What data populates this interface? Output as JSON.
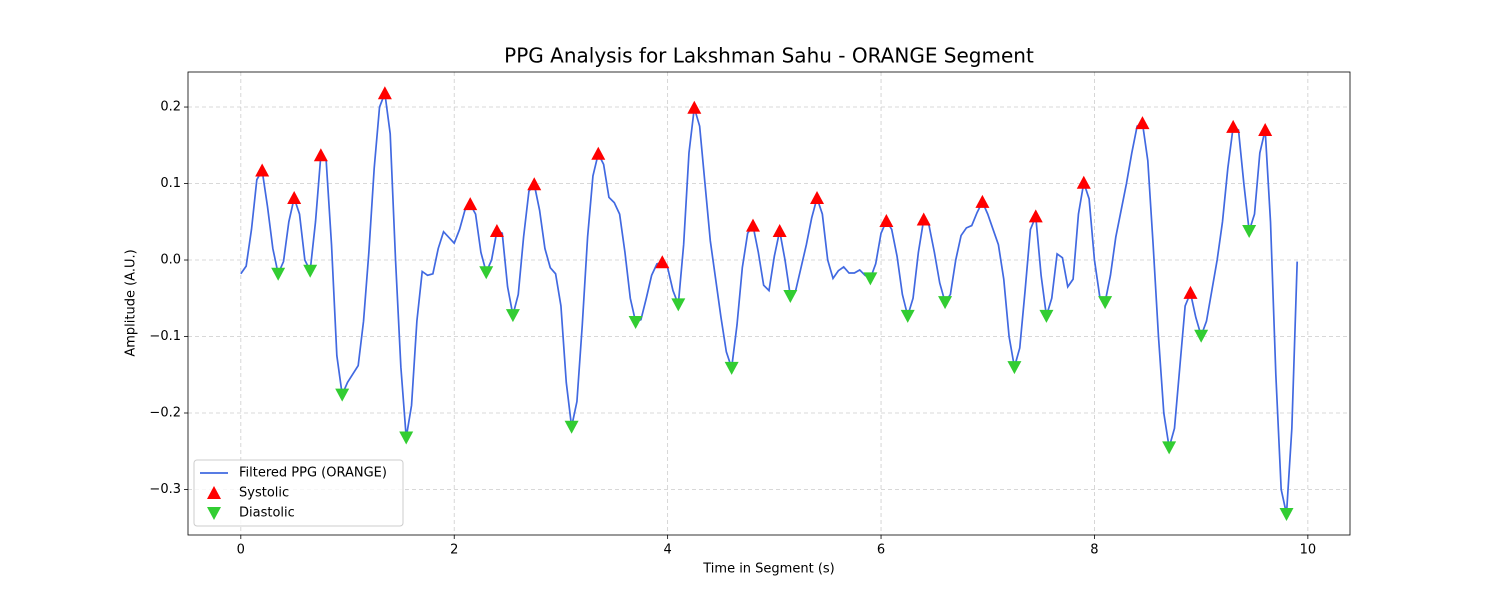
{
  "chart_data": {
    "type": "line",
    "title": "PPG Analysis for Lakshman Sahu - ORANGE Segment",
    "xlabel": "Time in Segment (s)",
    "ylabel": "Amplitude (A.U.)",
    "xlim": [
      -0.495,
      10.395
    ],
    "ylim": [
      -0.3595,
      0.2458
    ],
    "xticks": [
      0,
      2,
      4,
      6,
      8,
      10
    ],
    "yticks": [
      {
        "value": -0.3,
        "label": "−0.3"
      },
      {
        "value": -0.2,
        "label": "−0.2"
      },
      {
        "value": -0.1,
        "label": "−0.1"
      },
      {
        "value": 0,
        "label": "0.0"
      },
      0.1,
      0.2
    ],
    "grid": true,
    "legend": "lower left",
    "series": [
      {
        "name": "Filtered PPG (ORANGE)",
        "color": "#4169e1",
        "marker": "none",
        "x": [
          0,
          0.05,
          0.1,
          0.15,
          0.2,
          0.25,
          0.3,
          0.35,
          0.4,
          0.45,
          0.5,
          0.55,
          0.6,
          0.65,
          0.7,
          0.75,
          0.8,
          0.85,
          0.9,
          0.95,
          1.0,
          1.1,
          1.15,
          1.2,
          1.25,
          1.3,
          1.35,
          1.4,
          1.45,
          1.5,
          1.55,
          1.6,
          1.65,
          1.7,
          1.75,
          1.8,
          1.85,
          1.9,
          2.0,
          2.05,
          2.1,
          2.15,
          2.2,
          2.25,
          2.3,
          2.35,
          2.4,
          2.45,
          2.5,
          2.55,
          2.6,
          2.65,
          2.7,
          2.75,
          2.8,
          2.85,
          2.9,
          2.95,
          3.0,
          3.05,
          3.1,
          3.15,
          3.2,
          3.25,
          3.3,
          3.35,
          3.4,
          3.45,
          3.5,
          3.55,
          3.6,
          3.65,
          3.7,
          3.75,
          3.8,
          3.85,
          3.9,
          3.95,
          4.0,
          4.05,
          4.1,
          4.15,
          4.2,
          4.25,
          4.3,
          4.35,
          4.4,
          4.45,
          4.5,
          4.55,
          4.6,
          4.65,
          4.7,
          4.75,
          4.8,
          4.85,
          4.9,
          4.95,
          5.0,
          5.05,
          5.1,
          5.15,
          5.2,
          5.25,
          5.3,
          5.35,
          5.4,
          5.45,
          5.5,
          5.55,
          5.6,
          5.65,
          5.7,
          5.75,
          5.8,
          5.85,
          5.9,
          5.95,
          6.0,
          6.05,
          6.1,
          6.15,
          6.2,
          6.25,
          6.3,
          6.35,
          6.4,
          6.45,
          6.5,
          6.55,
          6.6,
          6.65,
          6.7,
          6.75,
          6.8,
          6.85,
          6.9,
          6.95,
          7.0,
          7.05,
          7.1,
          7.15,
          7.2,
          7.25,
          7.3,
          7.35,
          7.4,
          7.45,
          7.5,
          7.55,
          7.6,
          7.65,
          7.7,
          7.75,
          7.8,
          7.85,
          7.9,
          7.95,
          8.0,
          8.05,
          8.1,
          8.15,
          8.2,
          8.25,
          8.3,
          8.35,
          8.4,
          8.45,
          8.5,
          8.55,
          8.6,
          8.65,
          8.7,
          8.75,
          8.8,
          8.85,
          8.9,
          8.95,
          9.0,
          9.05,
          9.1,
          9.15,
          9.2,
          9.25,
          9.3,
          9.35,
          9.4,
          9.45,
          9.5,
          9.55,
          9.6,
          9.65,
          9.7,
          9.75,
          9.8,
          9.85,
          9.9
        ],
        "values": [
          -0.018,
          -0.008,
          0.04,
          0.105,
          0.117,
          0.07,
          0.015,
          -0.018,
          -0.002,
          0.05,
          0.081,
          0.06,
          0.0,
          -0.014,
          0.05,
          0.137,
          0.13,
          0.02,
          -0.125,
          -0.176,
          -0.16,
          -0.138,
          -0.08,
          0.01,
          0.12,
          0.2,
          0.218,
          0.165,
          0.0,
          -0.14,
          -0.232,
          -0.19,
          -0.08,
          -0.015,
          -0.02,
          -0.018,
          0.015,
          0.037,
          0.022,
          0.04,
          0.065,
          0.073,
          0.06,
          0.01,
          -0.016,
          0.0,
          0.038,
          0.035,
          -0.035,
          -0.072,
          -0.045,
          0.03,
          0.09,
          0.099,
          0.065,
          0.015,
          -0.01,
          -0.018,
          -0.06,
          -0.16,
          -0.218,
          -0.185,
          -0.085,
          0.03,
          0.11,
          0.139,
          0.125,
          0.082,
          0.075,
          0.06,
          0.01,
          -0.05,
          -0.081,
          -0.078,
          -0.05,
          -0.02,
          -0.005,
          -0.003,
          -0.01,
          -0.04,
          -0.058,
          0.02,
          0.14,
          0.199,
          0.175,
          0.1,
          0.025,
          -0.025,
          -0.075,
          -0.12,
          -0.141,
          -0.085,
          -0.01,
          0.035,
          0.045,
          0.01,
          -0.033,
          -0.04,
          0.005,
          0.038,
          0.0,
          -0.047,
          -0.04,
          -0.01,
          0.02,
          0.055,
          0.081,
          0.06,
          0.0,
          -0.024,
          -0.014,
          -0.009,
          -0.017,
          -0.017,
          -0.013,
          -0.02,
          -0.024,
          -0.005,
          0.035,
          0.051,
          0.04,
          0.005,
          -0.045,
          -0.073,
          -0.05,
          0.01,
          0.053,
          0.045,
          0.01,
          -0.03,
          -0.055,
          -0.045,
          0.0,
          0.032,
          0.042,
          0.045,
          0.062,
          0.076,
          0.06,
          0.04,
          0.02,
          -0.025,
          -0.1,
          -0.14,
          -0.115,
          -0.04,
          0.04,
          0.057,
          -0.02,
          -0.073,
          -0.05,
          0.008,
          0.003,
          -0.035,
          -0.025,
          0.06,
          0.101,
          0.08,
          0.0,
          -0.048,
          -0.055,
          -0.02,
          0.03,
          0.065,
          0.1,
          0.14,
          0.175,
          0.179,
          0.13,
          0.02,
          -0.1,
          -0.2,
          -0.245,
          -0.22,
          -0.14,
          -0.06,
          -0.043,
          -0.075,
          -0.099,
          -0.08,
          -0.04,
          0.0,
          0.05,
          0.12,
          0.174,
          0.17,
          0.1,
          0.038,
          0.06,
          0.14,
          0.17,
          0.05,
          -0.15,
          -0.3,
          -0.332,
          -0.22,
          -0.002
        ]
      },
      {
        "name": "Systolic",
        "color": "#ff0000",
        "marker": "triangle-up",
        "x": [
          0.2,
          0.5,
          0.75,
          1.35,
          2.15,
          2.4,
          2.75,
          3.35,
          3.95,
          4.25,
          4.8,
          5.05,
          5.4,
          6.05,
          6.4,
          6.95,
          7.45,
          7.9,
          8.45,
          8.9,
          9.3,
          9.6
        ],
        "values": [
          0.117,
          0.081,
          0.137,
          0.218,
          0.073,
          0.038,
          0.099,
          0.139,
          -0.003,
          0.199,
          0.045,
          0.038,
          0.081,
          0.051,
          0.053,
          0.076,
          0.057,
          0.101,
          0.179,
          -0.043,
          0.174,
          0.17
        ]
      },
      {
        "name": "Diastolic",
        "color": "#32cd32",
        "marker": "triangle-down",
        "x": [
          0.35,
          0.65,
          0.95,
          1.55,
          2.3,
          2.55,
          3.1,
          3.7,
          4.1,
          4.6,
          5.15,
          5.9,
          6.25,
          6.6,
          7.25,
          7.55,
          8.1,
          8.7,
          9.0,
          9.45,
          9.8
        ],
        "values": [
          -0.018,
          -0.014,
          -0.176,
          -0.232,
          -0.016,
          -0.072,
          -0.218,
          -0.081,
          -0.058,
          -0.141,
          -0.047,
          -0.024,
          -0.073,
          -0.055,
          -0.14,
          -0.073,
          -0.055,
          -0.245,
          -0.099,
          0.038,
          -0.332
        ]
      }
    ]
  }
}
